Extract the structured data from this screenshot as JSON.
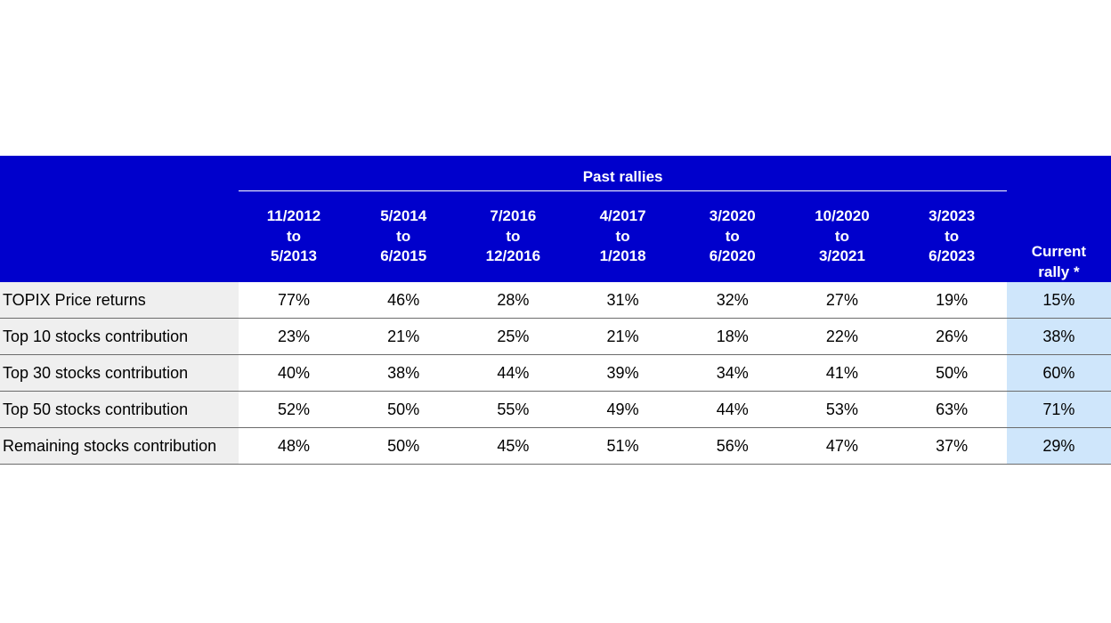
{
  "chart_data": {
    "type": "table",
    "header_group": "Past rallies",
    "periods": [
      [
        "11/2012",
        "to",
        "5/2013"
      ],
      [
        "5/2014",
        "to",
        "6/2015"
      ],
      [
        "7/2016",
        "to",
        "12/2016"
      ],
      [
        "4/2017",
        "to",
        "1/2018"
      ],
      [
        "3/2020",
        "to",
        "6/2020"
      ],
      [
        "10/2020",
        "to",
        "3/2021"
      ],
      [
        "3/2023",
        "to",
        "6/2023"
      ]
    ],
    "current_header": [
      "Current",
      "rally *"
    ],
    "rows": [
      {
        "label": "TOPIX Price returns",
        "values": [
          "77%",
          "46%",
          "28%",
          "31%",
          "32%",
          "27%",
          "19%"
        ],
        "current": "15%"
      },
      {
        "label": "Top 10 stocks contribution",
        "values": [
          "23%",
          "21%",
          "25%",
          "21%",
          "18%",
          "22%",
          "26%"
        ],
        "current": "38%"
      },
      {
        "label": "Top 30 stocks contribution",
        "values": [
          "40%",
          "38%",
          "44%",
          "39%",
          "34%",
          "41%",
          "50%"
        ],
        "current": "60%"
      },
      {
        "label": "Top 50 stocks contribution",
        "values": [
          "52%",
          "50%",
          "55%",
          "49%",
          "44%",
          "53%",
          "63%"
        ],
        "current": "71%"
      },
      {
        "label": "Remaining stocks contribution",
        "values": [
          "48%",
          "50%",
          "45%",
          "51%",
          "56%",
          "47%",
          "37%"
        ],
        "current": "29%"
      }
    ]
  },
  "colors": {
    "header_background": "#0000cc",
    "header_text": "#ffffff",
    "label_column_background": "#efefef",
    "current_column_background": "#cfe6fb",
    "row_divider": "#6b6b6b"
  }
}
